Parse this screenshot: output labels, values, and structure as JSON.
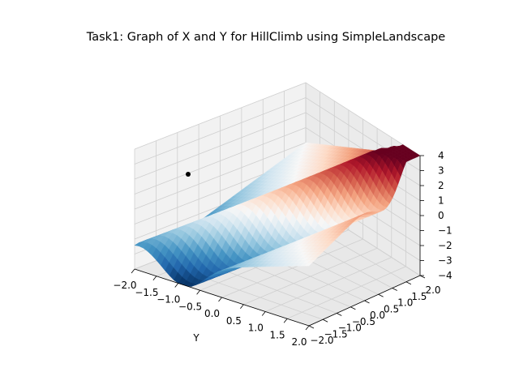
{
  "chart_data": {
    "type": "surface3d",
    "title": "Task1: Graph of X and Y for HillClimb using SimpleLandscape",
    "xlabel": "",
    "ylabel": "Y",
    "zlabel": "",
    "x_range": [
      -2.0,
      2.0
    ],
    "y_range": [
      -2.0,
      2.0
    ],
    "z_range": [
      -4.0,
      4.0
    ],
    "x_ticks": [
      "−2.0",
      "−1.5",
      "−1.0",
      "−0.5",
      "0.0",
      "0.5",
      "1.0",
      "1.5",
      "2.0"
    ],
    "y_ticks": [
      "−2.0",
      "−1.5",
      "−1.0",
      "−0.5",
      "0.0",
      "0.5",
      "1.0",
      "1.5",
      "2.0"
    ],
    "z_ticks": [
      "−4",
      "−3",
      "−2",
      "−1",
      "0",
      "1",
      "2",
      "3",
      "4"
    ],
    "colormap": "RdBu",
    "colormap_stops": [
      "#67001f",
      "#b2182b",
      "#d6604d",
      "#f4a582",
      "#fddbc7",
      "#f7f7f7",
      "#d1e5f0",
      "#92c5de",
      "#4393c3",
      "#2166ac",
      "#053061"
    ],
    "grid": true,
    "pane_color": "#f2f2f2",
    "grid_color": "#cfcfcf",
    "surface_grid_n": 40,
    "surface_function": "z ≈ x + y with fold along x = y (landscape)",
    "marker": {
      "color": "#000000"
    }
  }
}
